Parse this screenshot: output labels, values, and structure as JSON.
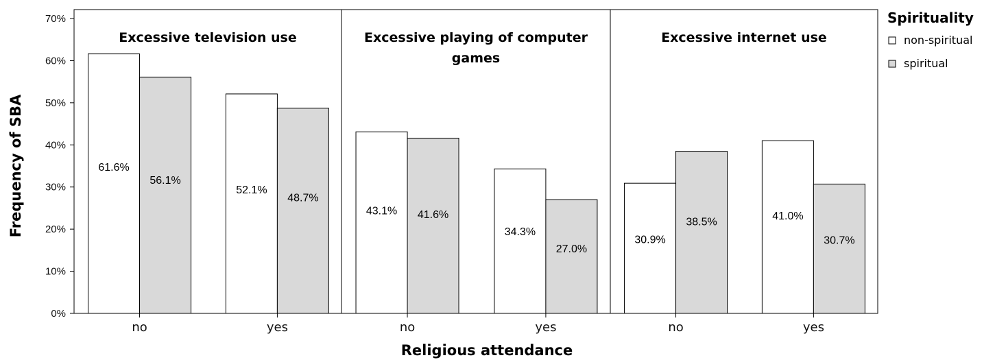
{
  "chart_data": {
    "type": "bar",
    "ylabel": "Frequency of SBA",
    "xlabel": "Religious attendance",
    "ylim": [
      0,
      70
    ],
    "yticks": [
      "0%",
      "10%",
      "20%",
      "30%",
      "40%",
      "50%",
      "60%",
      "70%"
    ],
    "categories": [
      "no",
      "yes"
    ],
    "legend": {
      "title": "Spirituality",
      "position": "right",
      "entries": [
        "non-spiritual",
        "spiritual"
      ]
    },
    "colors": {
      "non-spiritual": "#ffffff",
      "spiritual": "#d9d9d9",
      "stroke": "#000000"
    },
    "grid": false,
    "panels": [
      {
        "title": [
          "Excessive television use"
        ],
        "series": [
          {
            "name": "non-spiritual",
            "values": [
              61.6,
              52.1
            ],
            "labels": [
              "61.6%",
              "52.1%"
            ]
          },
          {
            "name": "spiritual",
            "values": [
              56.1,
              48.7
            ],
            "labels": [
              "56.1%",
              "48.7%"
            ]
          }
        ]
      },
      {
        "title": [
          "Excessive playing of computer",
          "games"
        ],
        "series": [
          {
            "name": "non-spiritual",
            "values": [
              43.1,
              34.3
            ],
            "labels": [
              "43.1%",
              "34.3%"
            ]
          },
          {
            "name": "spiritual",
            "values": [
              41.6,
              27.0
            ],
            "labels": [
              "41.6%",
              "27.0%"
            ]
          }
        ]
      },
      {
        "title": [
          "Excessive internet use"
        ],
        "series": [
          {
            "name": "non-spiritual",
            "values": [
              30.9,
              41.0
            ],
            "labels": [
              "30.9%",
              "41.0%"
            ]
          },
          {
            "name": "spiritual",
            "values": [
              38.5,
              30.7
            ],
            "labels": [
              "38.5%",
              "30.7%"
            ]
          }
        ]
      }
    ]
  }
}
